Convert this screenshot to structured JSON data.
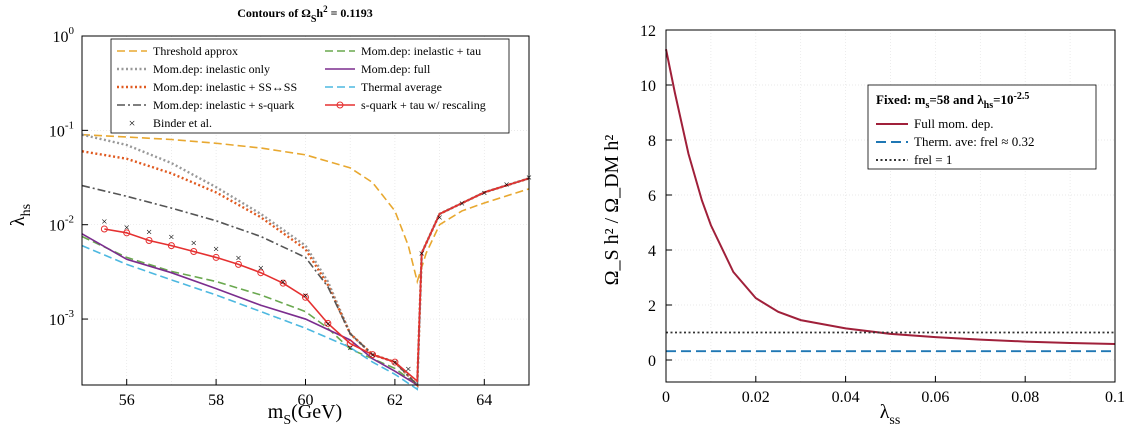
{
  "left_chart": {
    "title_main": "Contours of Ω",
    "title_sub": "S",
    "title_rest": "h",
    "title_sup": "2",
    "title_value": " = 0.1193",
    "xlabel_main": "m",
    "xlabel_sub": "S",
    "xlabel_unit": "(GeV)",
    "ylabel_main": "λ",
    "ylabel_sub": "hs",
    "xticks": [
      "56",
      "58",
      "60",
      "62",
      "64"
    ],
    "yticks": [
      {
        "base": "10",
        "exp": "0"
      },
      {
        "base": "10",
        "exp": "-1"
      },
      {
        "base": "10",
        "exp": "-2"
      },
      {
        "base": "10",
        "exp": "-3"
      }
    ],
    "legend": [
      {
        "label": "Threshold approx",
        "color": "#E8A830",
        "style": "dash"
      },
      {
        "label": "Mom.dep: inelastic + tau",
        "color": "#6AA84F",
        "style": "dash"
      },
      {
        "label": "Mom.dep: inelastic only",
        "color": "#999999",
        "style": "dot"
      },
      {
        "label": "Mom.dep: full",
        "color": "#7B2D8E",
        "style": "solid"
      },
      {
        "label": "Mom.dep: inelastic + SS↔SS",
        "color": "#E05A20",
        "style": "dot"
      },
      {
        "label": "Thermal average",
        "color": "#4DB8E0",
        "style": "dash"
      },
      {
        "label": "Mom.dep: inelastic + s-quark",
        "color": "#555555",
        "style": "dashdot"
      },
      {
        "label": "s-quark + tau w/ rescaling",
        "color": "#E53030",
        "style": "circle"
      },
      {
        "label": "Binder et al.",
        "color": "#000000",
        "style": "cross"
      }
    ]
  },
  "right_chart": {
    "xlabel_main": "λ",
    "xlabel_sub": "ss",
    "ylabel": "Ω_S h² / Ω_DM h²",
    "xticks": [
      "0",
      "0.02",
      "0.04",
      "0.06",
      "0.08",
      "0.1"
    ],
    "yticks": [
      "0",
      "2",
      "4",
      "6",
      "8",
      "10",
      "12"
    ],
    "legend_title_prefix": "Fixed:  m",
    "legend_title_sub": "s",
    "legend_title_mid": "=58 and  λ",
    "legend_title_sub2": "hs",
    "legend_title_eq": "=10",
    "legend_title_exp": "-2.5",
    "legend": [
      {
        "label": "Full mom. dep.",
        "color": "#A0203A",
        "style": "solid"
      },
      {
        "label": "Therm. ave: frel ≈ 0.32",
        "color": "#1F77B4",
        "style": "dash"
      },
      {
        "label": "frel = 1",
        "color": "#333333",
        "style": "dot"
      }
    ]
  },
  "chart_data": [
    {
      "type": "line",
      "title": "Contours of Ω_S h² = 0.1193",
      "xlabel": "m_S(GeV)",
      "ylabel": "λ_hs",
      "xlim": [
        55,
        65
      ],
      "ylim": [
        0.0002,
        1
      ],
      "yscale": "log",
      "grid": true,
      "legend_position": "top",
      "series": [
        {
          "name": "Threshold approx",
          "x": [
            55,
            56,
            57,
            58,
            59,
            60,
            61,
            61.5,
            62,
            62.3,
            62.5,
            62.7,
            63,
            63.5,
            64,
            65
          ],
          "y": [
            0.09,
            0.085,
            0.08,
            0.073,
            0.065,
            0.055,
            0.04,
            0.028,
            0.014,
            0.006,
            0.0025,
            0.005,
            0.01,
            0.014,
            0.017,
            0.024
          ]
        },
        {
          "name": "Mom.dep: inelastic + tau",
          "x": [
            55,
            56,
            57,
            58,
            59,
            60,
            60.5,
            61,
            61.5,
            62,
            62.5,
            62.6,
            63,
            64,
            65
          ],
          "y": [
            0.0075,
            0.0045,
            0.0032,
            0.0025,
            0.0018,
            0.0012,
            0.0008,
            0.00048,
            0.00038,
            0.0003,
            0.0002,
            0.005,
            0.013,
            0.022,
            0.031
          ]
        },
        {
          "name": "Mom.dep: inelastic only",
          "x": [
            55,
            56,
            57,
            58,
            59,
            60,
            60.5,
            61,
            61.5,
            62,
            62.5,
            62.6,
            63,
            64,
            65
          ],
          "y": [
            0.09,
            0.07,
            0.045,
            0.025,
            0.013,
            0.006,
            0.0025,
            0.0007,
            0.00042,
            0.00035,
            0.0002,
            0.005,
            0.013,
            0.022,
            0.031
          ]
        },
        {
          "name": "Mom.dep: full",
          "x": [
            55,
            56,
            57,
            58,
            59,
            60,
            61,
            61.5,
            62,
            62.5,
            62.6,
            63,
            64,
            65
          ],
          "y": [
            0.008,
            0.0043,
            0.0031,
            0.0021,
            0.0014,
            0.001,
            0.0006,
            0.00038,
            0.00028,
            0.0002,
            0.005,
            0.013,
            0.022,
            0.031
          ]
        },
        {
          "name": "Mom.dep: inelastic + SS↔SS",
          "x": [
            55,
            56,
            57,
            58,
            59,
            60,
            60.5,
            61,
            61.5,
            62,
            62.5,
            62.6,
            63,
            64,
            65
          ],
          "y": [
            0.06,
            0.05,
            0.035,
            0.022,
            0.012,
            0.0055,
            0.0023,
            0.0007,
            0.00042,
            0.00035,
            0.0002,
            0.005,
            0.013,
            0.022,
            0.031
          ]
        },
        {
          "name": "Thermal average",
          "x": [
            55,
            56,
            57,
            58,
            59,
            60,
            61,
            61.5,
            62,
            62.5,
            62.6,
            63,
            64,
            65
          ],
          "y": [
            0.006,
            0.0038,
            0.0026,
            0.0018,
            0.0012,
            0.0008,
            0.0005,
            0.00035,
            0.00026,
            0.00018,
            0.005,
            0.013,
            0.022,
            0.031
          ]
        },
        {
          "name": "Mom.dep: inelastic + s-quark",
          "x": [
            55,
            56,
            57,
            58,
            59,
            60,
            60.5,
            61,
            61.5,
            62,
            62.5,
            62.6,
            63,
            64,
            65
          ],
          "y": [
            0.026,
            0.02,
            0.015,
            0.011,
            0.0075,
            0.0045,
            0.0022,
            0.0007,
            0.00042,
            0.00035,
            0.0002,
            0.005,
            0.013,
            0.022,
            0.031
          ]
        },
        {
          "name": "s-quark + tau w/ rescaling",
          "x": [
            55.5,
            56,
            56.5,
            57,
            57.5,
            58,
            58.5,
            59,
            59.5,
            60,
            60.5,
            61,
            61.5,
            62,
            62.5,
            62.6,
            63,
            64,
            65
          ],
          "y": [
            0.009,
            0.0082,
            0.0068,
            0.006,
            0.0052,
            0.0045,
            0.0038,
            0.0031,
            0.0024,
            0.0017,
            0.0009,
            0.00055,
            0.00042,
            0.00035,
            0.00022,
            0.005,
            0.013,
            0.022,
            0.031
          ]
        },
        {
          "name": "Binder et al.",
          "x": [
            55.5,
            56,
            56.5,
            57,
            57.5,
            58,
            58.5,
            59,
            59.5,
            60,
            60.5,
            61,
            61.5,
            62,
            62.3,
            62.6,
            63,
            63.5,
            64,
            64.5,
            65
          ],
          "y": [
            0.011,
            0.0095,
            0.0085,
            0.0075,
            0.0065,
            0.0056,
            0.0045,
            0.0035,
            0.0025,
            0.0018,
            0.0009,
            0.0005,
            0.00042,
            0.00035,
            0.0003,
            0.005,
            0.012,
            0.017,
            0.022,
            0.027,
            0.032
          ]
        }
      ]
    },
    {
      "type": "line",
      "xlabel": "λ_ss",
      "ylabel": "Ω_S h² / Ω_DM h²",
      "xlim": [
        0,
        0.1
      ],
      "ylim": [
        -0.8,
        12
      ],
      "grid": true,
      "legend_position": "top-right",
      "series": [
        {
          "name": "Full mom. dep.",
          "x": [
            0,
            0.002,
            0.005,
            0.008,
            0.01,
            0.015,
            0.02,
            0.025,
            0.03,
            0.04,
            0.05,
            0.06,
            0.07,
            0.08,
            0.09,
            0.1
          ],
          "y": [
            11.3,
            9.7,
            7.5,
            5.8,
            4.9,
            3.2,
            2.25,
            1.75,
            1.45,
            1.15,
            0.95,
            0.83,
            0.74,
            0.67,
            0.62,
            0.58
          ]
        },
        {
          "name": "Therm. ave: frel ≈ 0.32",
          "x": [
            0,
            0.1
          ],
          "y": [
            0.32,
            0.32
          ]
        },
        {
          "name": "frel = 1",
          "x": [
            0,
            0.1
          ],
          "y": [
            1,
            1
          ]
        }
      ]
    }
  ]
}
